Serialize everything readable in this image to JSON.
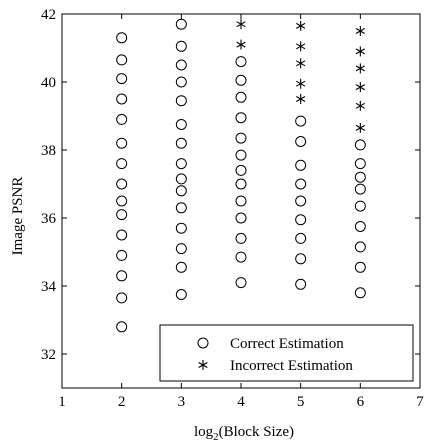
{
  "chart_data": {
    "type": "scatter",
    "xlabel_main": "log",
    "xlabel_sub": "2",
    "xlabel_rest": "(Block Size)",
    "ylabel": "Image PSNR",
    "xlim": [
      1,
      7
    ],
    "ylim": [
      31,
      42
    ],
    "xticks": [
      1,
      2,
      3,
      4,
      5,
      6,
      7
    ],
    "yticks": [
      32,
      34,
      36,
      38,
      40,
      42
    ],
    "grid": false,
    "legend_position": "bottom-right",
    "series": [
      {
        "name": "Correct Estimation",
        "marker": "circle",
        "points": [
          [
            2,
            41.3
          ],
          [
            2,
            40.65
          ],
          [
            2,
            40.1
          ],
          [
            2,
            39.5
          ],
          [
            2,
            38.9
          ],
          [
            2,
            38.2
          ],
          [
            2,
            37.6
          ],
          [
            2,
            37.0
          ],
          [
            2,
            36.5
          ],
          [
            2,
            36.1
          ],
          [
            2,
            35.5
          ],
          [
            2,
            34.9
          ],
          [
            2,
            34.3
          ],
          [
            2,
            33.65
          ],
          [
            2,
            32.8
          ],
          [
            3,
            41.7
          ],
          [
            3,
            41.05
          ],
          [
            3,
            40.5
          ],
          [
            3,
            40.0
          ],
          [
            3,
            39.45
          ],
          [
            3,
            38.75
          ],
          [
            3,
            38.2
          ],
          [
            3,
            37.6
          ],
          [
            3,
            37.15
          ],
          [
            3,
            36.8
          ],
          [
            3,
            36.3
          ],
          [
            3,
            35.7
          ],
          [
            3,
            35.1
          ],
          [
            3,
            34.55
          ],
          [
            3,
            33.75
          ],
          [
            4,
            40.6
          ],
          [
            4,
            40.05
          ],
          [
            4,
            39.55
          ],
          [
            4,
            38.95
          ],
          [
            4,
            38.35
          ],
          [
            4,
            37.85
          ],
          [
            4,
            37.4
          ],
          [
            4,
            37.0
          ],
          [
            4,
            36.5
          ],
          [
            4,
            36.0
          ],
          [
            4,
            35.4
          ],
          [
            4,
            34.85
          ],
          [
            4,
            34.1
          ],
          [
            5,
            38.85
          ],
          [
            5,
            38.25
          ],
          [
            5,
            37.55
          ],
          [
            5,
            37.0
          ],
          [
            5,
            36.5
          ],
          [
            5,
            35.95
          ],
          [
            5,
            35.4
          ],
          [
            5,
            34.8
          ],
          [
            5,
            34.05
          ],
          [
            6,
            38.15
          ],
          [
            6,
            37.6
          ],
          [
            6,
            37.2
          ],
          [
            6,
            36.85
          ],
          [
            6,
            36.35
          ],
          [
            6,
            35.75
          ],
          [
            6,
            35.15
          ],
          [
            6,
            34.55
          ],
          [
            6,
            33.8
          ]
        ]
      },
      {
        "name": "Incorrect Estimation",
        "marker": "asterisk",
        "points": [
          [
            4,
            41.7
          ],
          [
            4,
            41.1
          ],
          [
            5,
            41.65
          ],
          [
            5,
            41.05
          ],
          [
            5,
            40.55
          ],
          [
            5,
            39.95
          ],
          [
            5,
            39.5
          ],
          [
            6,
            41.5
          ],
          [
            6,
            40.9
          ],
          [
            6,
            40.4
          ],
          [
            6,
            39.85
          ],
          [
            6,
            39.3
          ],
          [
            6,
            38.65
          ]
        ]
      }
    ]
  }
}
